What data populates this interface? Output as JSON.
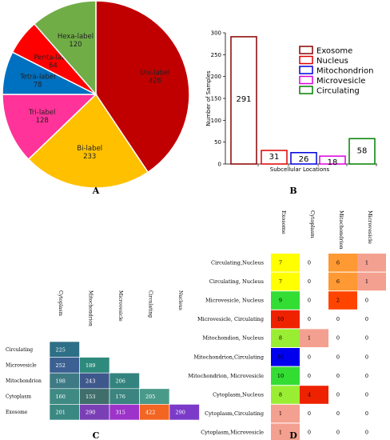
{
  "panels": {
    "a": "A",
    "b": "B",
    "c": "C",
    "d": "D"
  },
  "chart_data": [
    {
      "type": "pie",
      "panel": "A",
      "slices": [
        {
          "label": "Uni-label",
          "value": 426,
          "color": "#c00000"
        },
        {
          "label": "Bi-label",
          "value": 233,
          "color": "#ffc000"
        },
        {
          "label": "Tri-label",
          "value": 128,
          "color": "#ff3399"
        },
        {
          "label": "Tetra-label",
          "value": 78,
          "color": "#0070c0"
        },
        {
          "label": "Penta-label",
          "value": 64,
          "color": "#ff0000"
        },
        {
          "label": "Hexa-label",
          "value": 120,
          "color": "#70ad47"
        }
      ]
    },
    {
      "type": "bar",
      "panel": "B",
      "categories": [
        "Exosome",
        "Nucleus",
        "Mitochondrion",
        "Microvesicle",
        "Circulating"
      ],
      "values": [
        291,
        31,
        26,
        18,
        58
      ],
      "colors": [
        "#8b0000",
        "#e00000",
        "#0000dd",
        "#dd00dd",
        "#008000"
      ],
      "xlabel": "Subcellular Locations",
      "ylabel": "Number of Samples",
      "ylim": [
        0,
        300
      ],
      "yticks": [
        0,
        50,
        100,
        150,
        200,
        250,
        300
      ],
      "legend_position": "top-right"
    },
    {
      "type": "heatmap",
      "panel": "C",
      "columns": [
        "Cytoplasm",
        "Mitochondrion",
        "Microvesicle",
        "Circulating",
        "Nucleus"
      ],
      "rows": [
        {
          "label": "Circulating",
          "values": [
            225
          ]
        },
        {
          "label": "Microvesicle",
          "values": [
            252,
            189
          ]
        },
        {
          "label": "Mitochondrion",
          "values": [
            198,
            243,
            206
          ]
        },
        {
          "label": "Cytoplasm",
          "values": [
            160,
            153,
            176,
            205
          ]
        },
        {
          "label": "Exosome",
          "values": [
            201,
            290,
            315,
            422,
            290
          ]
        }
      ],
      "cell_colors": [
        [
          "#2d6f86"
        ],
        [
          "#3c6092",
          "#2e8a7c"
        ],
        [
          "#3d7a84",
          "#3e588c",
          "#33837e"
        ],
        [
          "#3f8a83",
          "#3f6e6b",
          "#3b8480",
          "#4a9a8a"
        ],
        [
          "#3a8882",
          "#7a3fb5",
          "#9d33c9",
          "#f26522",
          "#7b3bc8"
        ]
      ]
    },
    {
      "type": "heatmap",
      "panel": "D",
      "columns": [
        "Exosome",
        "Cytoplasm",
        "Mitochondrion",
        "Microvesicle"
      ],
      "rows": [
        {
          "label": "Circulating,Nucleus",
          "values": [
            7,
            0,
            6,
            1
          ]
        },
        {
          "label": "Circulating, Nucleus",
          "values": [
            7,
            0,
            6,
            1
          ]
        },
        {
          "label": "Microvesicle, Nucleus",
          "values": [
            9,
            0,
            2,
            0
          ]
        },
        {
          "label": "Microvesicle, Circulating",
          "values": [
            10,
            0,
            0,
            0
          ]
        },
        {
          "label": "Mitochondion, Nucleus",
          "values": [
            8,
            1,
            0,
            0
          ]
        },
        {
          "label": "Mitochondrion,Circulating",
          "values": [
            10,
            0,
            0,
            0
          ]
        },
        {
          "label": "Mitochondrion, Microvesicle",
          "values": [
            10,
            0,
            0,
            0
          ]
        },
        {
          "label": "Cytoplasm,Nucleus",
          "values": [
            8,
            4,
            0,
            0
          ]
        },
        {
          "label": "Cytoplasm,Circulating",
          "values": [
            1,
            0,
            0,
            0
          ]
        },
        {
          "label": "Cytoplasm,Microvesicle",
          "values": [
            1,
            0,
            0,
            0
          ]
        }
      ],
      "cell_colors": [
        [
          "#ffff00",
          null,
          "#ff9933",
          "#f4a090"
        ],
        [
          "#ffff00",
          null,
          "#ff9933",
          "#f4a090"
        ],
        [
          "#33dd33",
          null,
          "#ff4400",
          null
        ],
        [
          "#ee2200",
          null,
          null,
          null
        ],
        [
          "#99ee33",
          "#f4a090",
          null,
          null
        ],
        [
          "#0000ee",
          null,
          null,
          null
        ],
        [
          "#33dd33",
          null,
          null,
          null
        ],
        [
          "#99ee33",
          "#ee2200",
          null,
          null
        ],
        [
          "#f4a090",
          null,
          null,
          null
        ],
        [
          "#f4a090",
          null,
          null,
          null
        ]
      ]
    }
  ]
}
